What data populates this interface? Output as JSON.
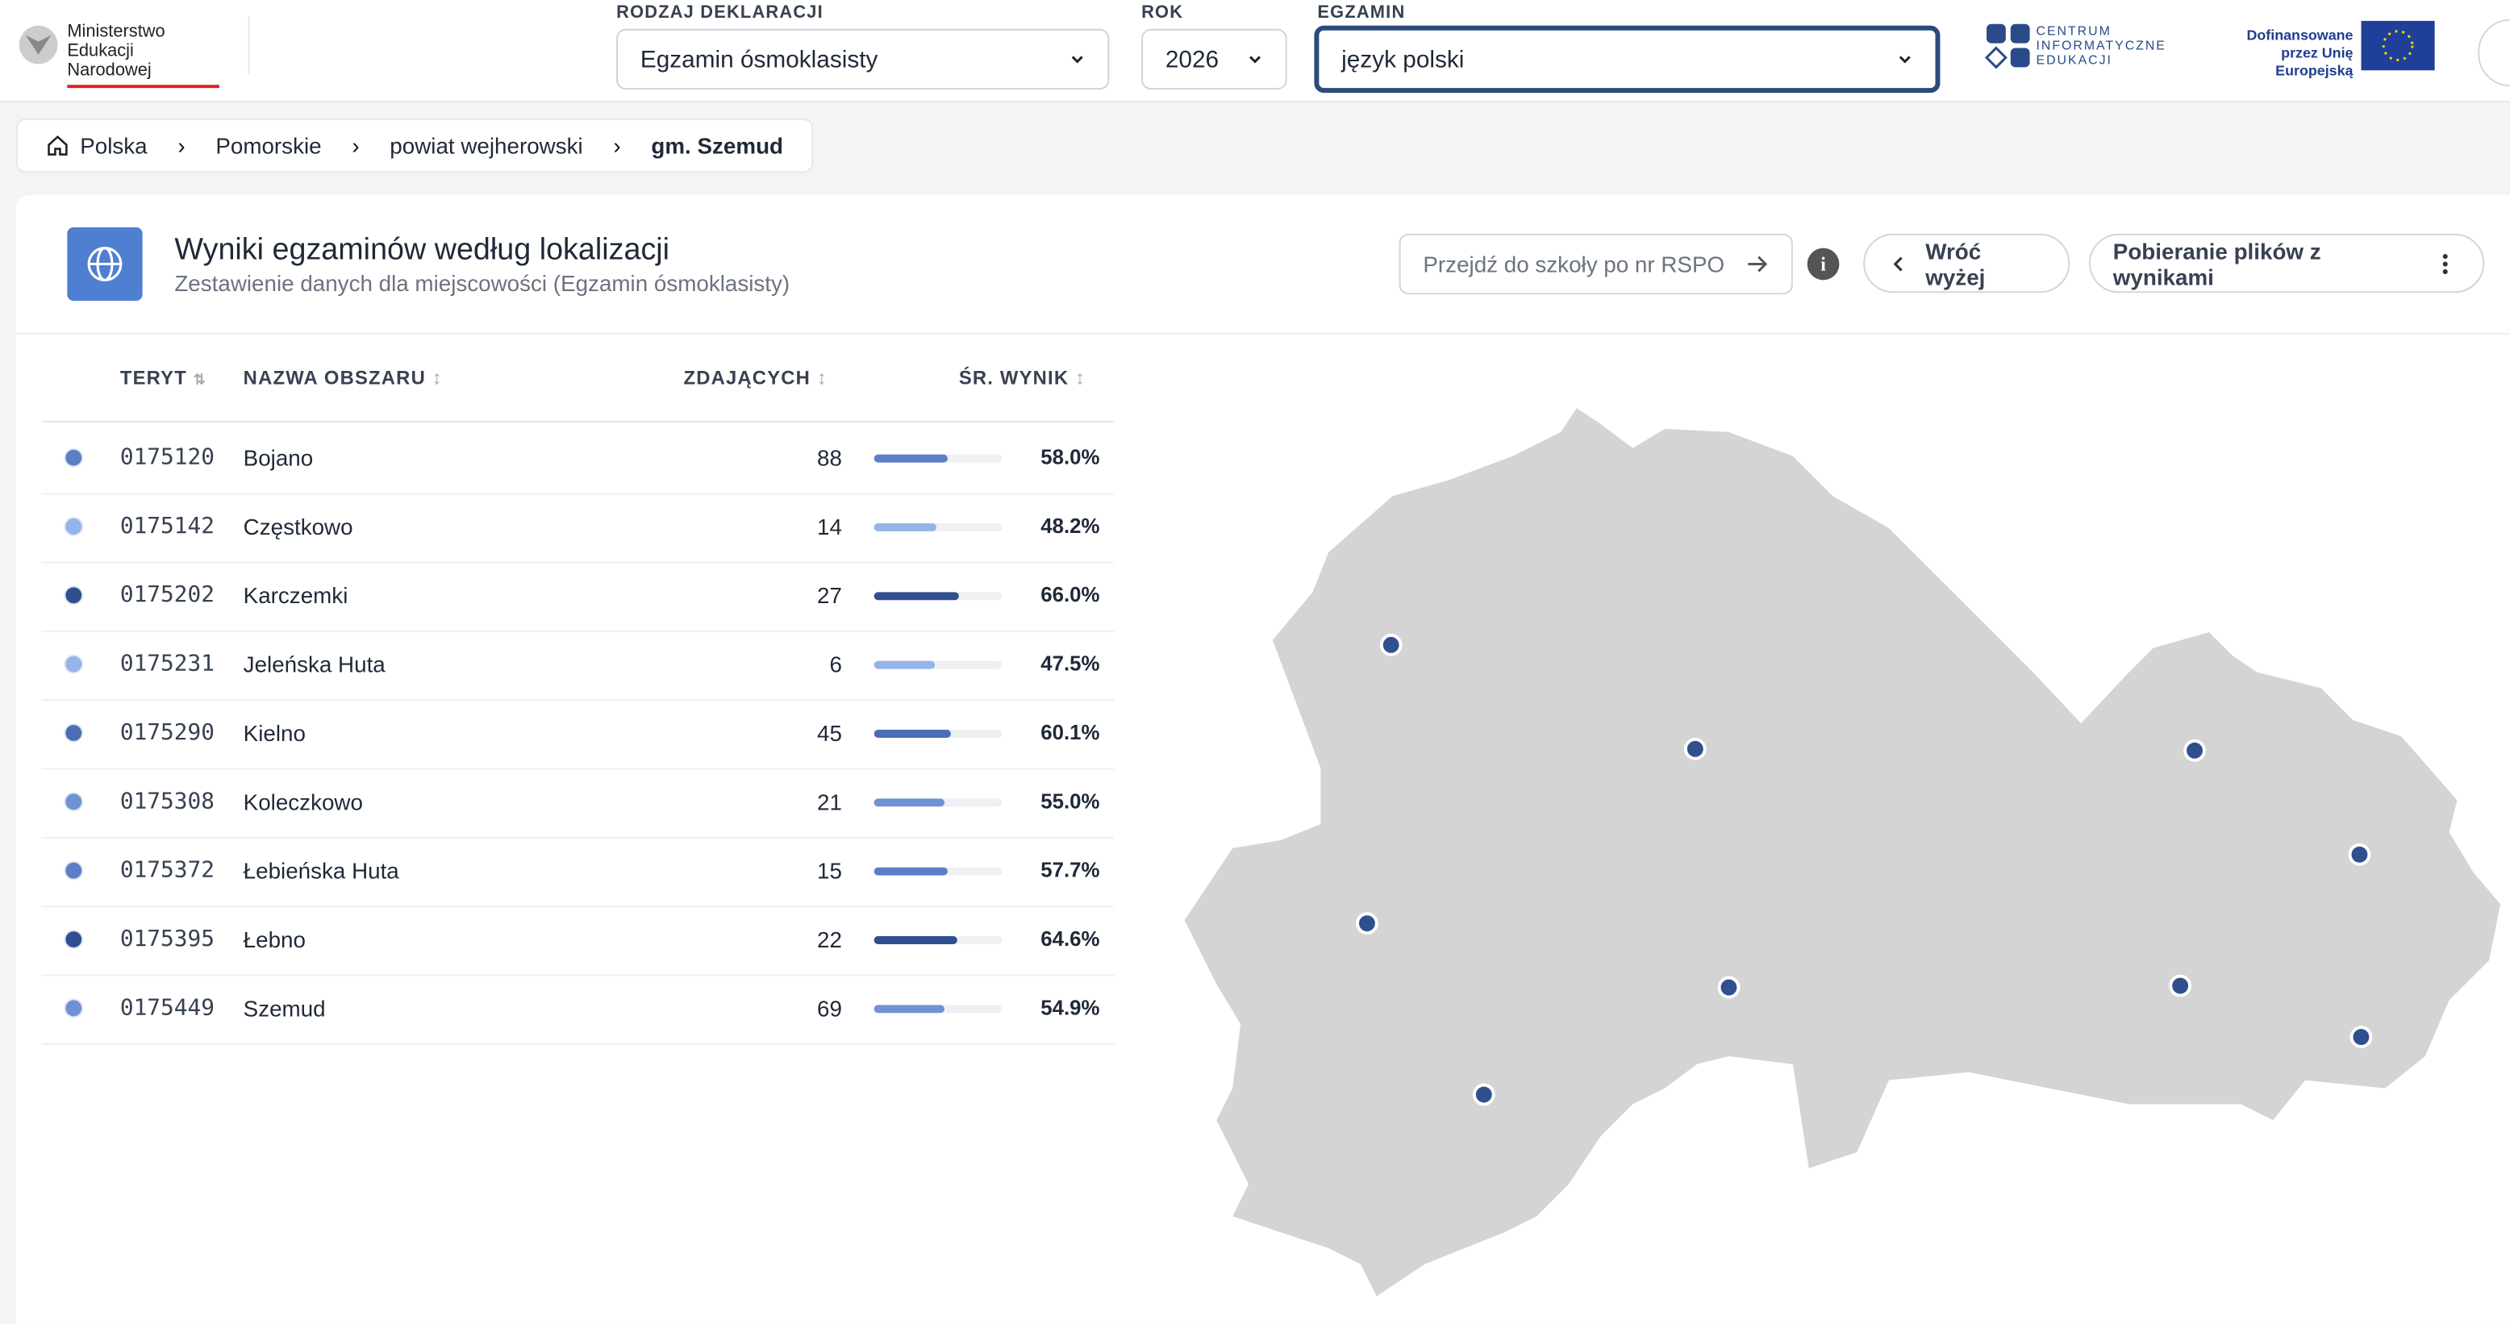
{
  "header": {
    "ministry": "Ministerstwo Edukacji Narodowej",
    "cie": "CENTRUM INFORMATYCZNE EDUKACJI",
    "eu": "Dofinansowane przez Unię Europejską",
    "filters": [
      {
        "label": "RODZAJ DEKLARACJI",
        "value": "Egzamin ósmoklasisty"
      },
      {
        "label": "ROK",
        "value": "2026"
      },
      {
        "label": "EGZAMIN",
        "value": "język polski"
      }
    ]
  },
  "breadcrumb": [
    "Polska",
    "Pomorskie",
    "powiat wejherowski",
    "gm. Szemud"
  ],
  "panel": {
    "title": "Wyniki egzaminów według lokalizacji",
    "subtitle": "Zestawienie danych dla miejscowości (Egzamin ósmoklasisty)",
    "search_placeholder": "Przejdź do szkoły po nr RSPO",
    "back": "Wróć wyżej",
    "download": "Pobieranie plików z wynikami"
  },
  "table": {
    "columns": [
      "TERYT",
      "NAZWA OBSZARU",
      "ZDAJĄCYCH",
      "ŚR. WYNIK"
    ],
    "rows": [
      {
        "teryt": "0175120",
        "name": "Bojano",
        "count": 88,
        "score": {
          "value": 58.0,
          "label": "58.0%"
        },
        "color": "#5b7fc4"
      },
      {
        "teryt": "0175142",
        "name": "Częstkowo",
        "count": 14,
        "score": {
          "value": 48.2,
          "label": "48.2%"
        },
        "color": "#94b4ea"
      },
      {
        "teryt": "0175202",
        "name": "Karczemki",
        "count": 27,
        "score": {
          "value": 66.0,
          "label": "66.0%"
        },
        "color": "#2f4f8e"
      },
      {
        "teryt": "0175231",
        "name": "Jeleńska Huta",
        "count": 6,
        "score": {
          "value": 47.5,
          "label": "47.5%"
        },
        "color": "#94b4ea"
      },
      {
        "teryt": "0175290",
        "name": "Kielno",
        "count": 45,
        "score": {
          "value": 60.1,
          "label": "60.1%"
        },
        "color": "#4a6db5"
      },
      {
        "teryt": "0175308",
        "name": "Koleczkowo",
        "count": 21,
        "score": {
          "value": 55.0,
          "label": "55.0%"
        },
        "color": "#6f92d4"
      },
      {
        "teryt": "0175372",
        "name": "Łebieńska Huta",
        "count": 15,
        "score": {
          "value": 57.7,
          "label": "57.7%"
        },
        "color": "#5b7fc4"
      },
      {
        "teryt": "0175395",
        "name": "Łebno",
        "count": 22,
        "score": {
          "value": 64.6,
          "label": "64.6%"
        },
        "color": "#2f4f8e"
      },
      {
        "teryt": "0175449",
        "name": "Szemud",
        "count": 69,
        "score": {
          "value": 54.9,
          "label": "54.9%"
        },
        "color": "#6f92d4"
      }
    ]
  }
}
